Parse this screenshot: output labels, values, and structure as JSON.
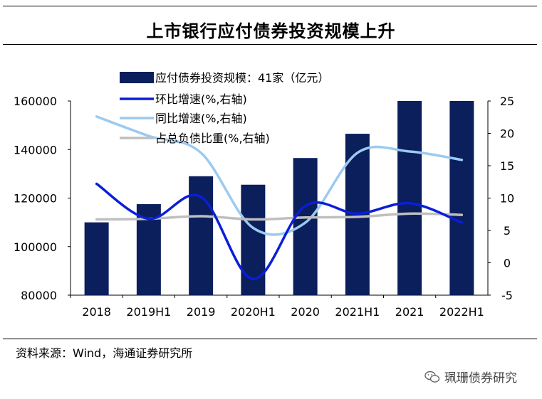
{
  "title": "上市银行应付债券投资规模上升",
  "source": "资料来源：Wind，海通证券研究所",
  "brand": "珮珊债券研究",
  "chart_data": {
    "type": "bar",
    "categories": [
      "2018",
      "2019H1",
      "2019",
      "2020H1",
      "2020",
      "2021H1",
      "2021",
      "2022H1"
    ],
    "y_left": {
      "min": 80000,
      "max": 160000,
      "ticks": [
        80000,
        100000,
        120000,
        140000,
        160000
      ]
    },
    "y_right": {
      "min": -5,
      "max": 25,
      "ticks": [
        -5,
        0,
        5,
        10,
        15,
        20,
        25
      ]
    },
    "series": [
      {
        "name": "应付债券投资规模：41家（亿元）",
        "type": "bar",
        "axis": "left",
        "color": "#0b1f5c",
        "values": [
          110000,
          117500,
          129000,
          125500,
          136500,
          146500,
          160000,
          160000
        ]
      },
      {
        "name": "环比增速(%,右轴)",
        "type": "line",
        "axis": "right",
        "color": "#0a1ed8",
        "values": [
          12.2,
          6.8,
          10.2,
          -2.5,
          8.8,
          7.6,
          9.2,
          6.2
        ]
      },
      {
        "name": "同比增速(%,右轴)",
        "type": "line",
        "axis": "right",
        "color": "#9ccaf0",
        "values": [
          22.6,
          19.6,
          17.0,
          5.4,
          6.2,
          17.0,
          17.2,
          15.9
        ]
      },
      {
        "name": "占总负债比重(%,右轴)",
        "type": "line",
        "axis": "right",
        "color": "#bfbfbf",
        "values": [
          6.7,
          6.8,
          7.2,
          6.7,
          7.0,
          7.1,
          7.6,
          7.4
        ]
      }
    ],
    "legend_position": "top-left",
    "grid": false
  }
}
